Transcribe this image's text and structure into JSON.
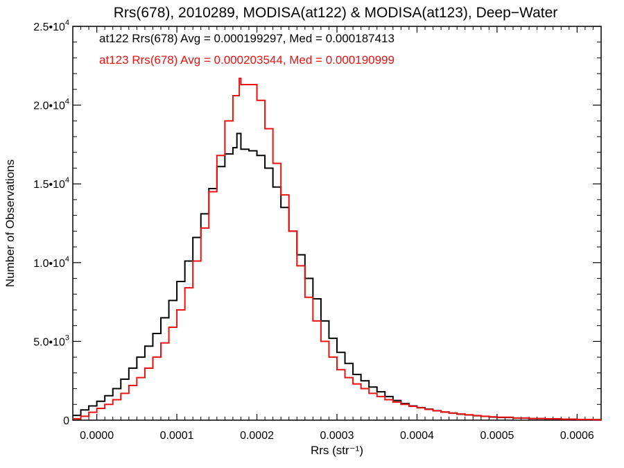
{
  "chart_data": {
    "type": "line",
    "subtype": "histogram-step",
    "title": "Rrs(678), 2010289, MODISA(at122) & MODISA(at123), Deep−Water",
    "xlabel": "Rrs (str⁻¹)",
    "ylabel": "Number of Observations",
    "xlim": [
      -3e-05,
      0.00063
    ],
    "ylim": [
      0,
      25000
    ],
    "xticks": [
      0.0,
      0.0001,
      0.0002,
      0.0003,
      0.0004,
      0.0005,
      0.0006
    ],
    "xtick_labels": [
      "0.0000",
      "0.0001",
      "0.0002",
      "0.0003",
      "0.0004",
      "0.0005",
      "0.0006"
    ],
    "yticks": [
      0,
      5000,
      10000,
      15000,
      20000,
      25000
    ],
    "ytick_labels": [
      {
        "base": "0",
        "exp": ""
      },
      {
        "base": "5.0•10",
        "exp": "3"
      },
      {
        "base": "1.0•10",
        "exp": "4"
      },
      {
        "base": "1.5•10",
        "exp": "4"
      },
      {
        "base": "2.0•10",
        "exp": "4"
      },
      {
        "base": "2.5•10",
        "exp": "4"
      }
    ],
    "legend_placement": "top-left",
    "series": [
      {
        "label": "at122 Rrs(678) Avg = 0.000199297, Med = 0.000187413",
        "color": "#000000",
        "points": [
          [
            -3e-05,
            300
          ],
          [
            -2e-05,
            650
          ],
          [
            -1e-05,
            900
          ],
          [
            0.0,
            1200
          ],
          [
            1e-05,
            1550
          ],
          [
            2e-05,
            2000
          ],
          [
            3e-05,
            2600
          ],
          [
            4e-05,
            3300
          ],
          [
            5e-05,
            4000
          ],
          [
            6e-05,
            4700
          ],
          [
            7e-05,
            5500
          ],
          [
            8e-05,
            6500
          ],
          [
            9e-05,
            7600
          ],
          [
            0.0001,
            8800
          ],
          [
            0.00011,
            10100
          ],
          [
            0.00012,
            11600
          ],
          [
            0.00013,
            13100
          ],
          [
            0.00014,
            14700
          ],
          [
            0.00015,
            16100
          ],
          [
            0.00016,
            16900
          ],
          [
            0.00017,
            17300
          ],
          [
            0.000175,
            18200
          ],
          [
            0.00018,
            17200
          ],
          [
            0.00019,
            17100
          ],
          [
            0.0002,
            16800
          ],
          [
            0.00021,
            16000
          ],
          [
            0.00022,
            14800
          ],
          [
            0.00023,
            13500
          ],
          [
            0.00024,
            12000
          ],
          [
            0.00025,
            10500
          ],
          [
            0.00026,
            9000
          ],
          [
            0.00027,
            7700
          ],
          [
            0.00028,
            6300
          ],
          [
            0.00029,
            5200
          ],
          [
            0.0003,
            4300
          ],
          [
            0.00031,
            3600
          ],
          [
            0.00032,
            2900
          ],
          [
            0.00033,
            2500
          ],
          [
            0.00034,
            2100
          ],
          [
            0.00035,
            1800
          ],
          [
            0.00036,
            1500
          ],
          [
            0.00037,
            1250
          ],
          [
            0.00038,
            1050
          ],
          [
            0.00039,
            900
          ],
          [
            0.0004,
            800
          ],
          [
            0.00041,
            700
          ],
          [
            0.00042,
            600
          ],
          [
            0.00043,
            520
          ],
          [
            0.00044,
            450
          ],
          [
            0.00045,
            380
          ],
          [
            0.00046,
            330
          ],
          [
            0.00047,
            280
          ],
          [
            0.00048,
            240
          ],
          [
            0.00049,
            200
          ],
          [
            0.0005,
            170
          ],
          [
            0.00052,
            130
          ],
          [
            0.00054,
            100
          ],
          [
            0.00056,
            80
          ],
          [
            0.00058,
            60
          ],
          [
            0.0006,
            45
          ],
          [
            0.00062,
            35
          ],
          [
            0.00063,
            25
          ]
        ]
      },
      {
        "label": "at123 Rrs(678) Avg = 0.000203544, Med = 0.000190999",
        "color": "#ee1111",
        "points": [
          [
            -3e-05,
            80
          ],
          [
            -2e-05,
            250
          ],
          [
            -1e-05,
            500
          ],
          [
            0.0,
            750
          ],
          [
            1e-05,
            1000
          ],
          [
            2e-05,
            1300
          ],
          [
            3e-05,
            1700
          ],
          [
            4e-05,
            2200
          ],
          [
            5e-05,
            2700
          ],
          [
            6e-05,
            3300
          ],
          [
            7e-05,
            4000
          ],
          [
            8e-05,
            4900
          ],
          [
            9e-05,
            5900
          ],
          [
            0.0001,
            7000
          ],
          [
            0.00011,
            8400
          ],
          [
            0.00012,
            10100
          ],
          [
            0.00013,
            12200
          ],
          [
            0.00014,
            14500
          ],
          [
            0.00015,
            16800
          ],
          [
            0.00016,
            19000
          ],
          [
            0.00017,
            20600
          ],
          [
            0.000178,
            21700
          ],
          [
            0.00018,
            21300
          ],
          [
            0.00019,
            21300
          ],
          [
            0.0002,
            20300
          ],
          [
            0.00021,
            18500
          ],
          [
            0.00022,
            16300
          ],
          [
            0.00023,
            14300
          ],
          [
            0.00024,
            12000
          ],
          [
            0.00025,
            9800
          ],
          [
            0.00026,
            7800
          ],
          [
            0.00027,
            6300
          ],
          [
            0.00028,
            5000
          ],
          [
            0.00029,
            4000
          ],
          [
            0.0003,
            3200
          ],
          [
            0.00031,
            2700
          ],
          [
            0.00032,
            2300
          ],
          [
            0.00033,
            2000
          ],
          [
            0.00034,
            1700
          ],
          [
            0.00035,
            1500
          ],
          [
            0.00036,
            1300
          ],
          [
            0.00037,
            1150
          ],
          [
            0.00038,
            1000
          ],
          [
            0.00039,
            880
          ],
          [
            0.0004,
            780
          ],
          [
            0.00041,
            680
          ],
          [
            0.00042,
            600
          ],
          [
            0.00043,
            520
          ],
          [
            0.00044,
            450
          ],
          [
            0.00045,
            390
          ],
          [
            0.00046,
            340
          ],
          [
            0.00047,
            290
          ],
          [
            0.00048,
            250
          ],
          [
            0.00049,
            215
          ],
          [
            0.0005,
            185
          ],
          [
            0.00052,
            140
          ],
          [
            0.00054,
            105
          ],
          [
            0.00056,
            80
          ],
          [
            0.00058,
            60
          ],
          [
            0.0006,
            45
          ],
          [
            0.00062,
            30
          ],
          [
            0.00063,
            20
          ]
        ]
      }
    ]
  }
}
